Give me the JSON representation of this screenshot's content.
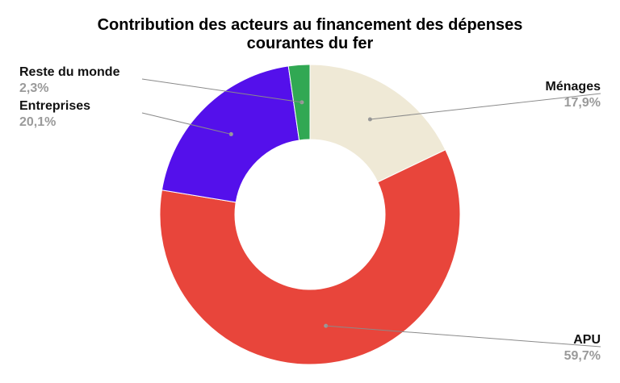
{
  "chart_data": {
    "type": "pie",
    "donut": true,
    "title_line1": "Contribution des acteurs au financement des dépenses",
    "title_line2": "courantes du fer",
    "slices": [
      {
        "label": "Ménages",
        "value": 17.9,
        "value_text": "17,9%",
        "color": "#efe9d6"
      },
      {
        "label": "APU",
        "value": 59.7,
        "value_text": "59,7%",
        "color": "#e8453b"
      },
      {
        "label": "Entreprises",
        "value": 20.1,
        "value_text": "20,1%",
        "color": "#5410eb"
      },
      {
        "label": "Reste du monde",
        "value": 2.3,
        "value_text": "2,3%",
        "color": "#31a853"
      }
    ]
  }
}
